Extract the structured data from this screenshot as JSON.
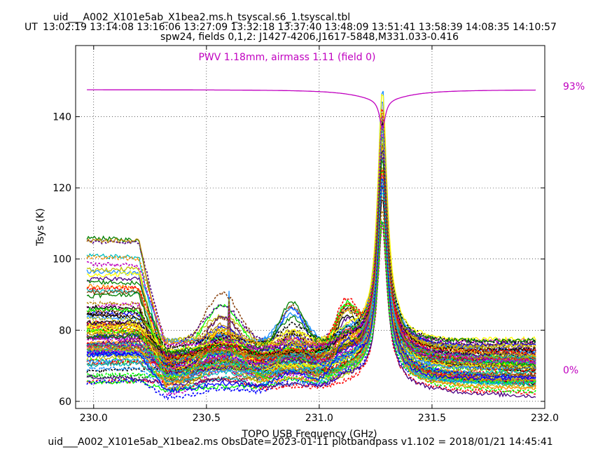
{
  "header": {
    "filename": "uid___A002_X101e5ab_X1bea2.ms.h_tsyscal.s6_1.tsyscal.tbl",
    "ut_label": "UT",
    "ut_times": [
      "13:02:19",
      "13:14:08",
      "13:16:06",
      "13:27:09",
      "13:32:18",
      "13:37:40",
      "13:48:09",
      "13:51:41",
      "13:58:39",
      "14:08:35",
      "14:10:57"
    ],
    "spw_line": "spw24,  fields 0,1,2: J1427-4206,J1617-5848,M331.033-0.416"
  },
  "footer": {
    "text": "uid___A002_X101e5ab_X1bea2.ms  ObsDate=2023-01-11   plotbandpass v1.102 = 2018/01/21 14:45:41"
  },
  "colors": {
    "atm": "#c000c0",
    "series": [
      "#0000ff",
      "#008000",
      "#ff0000",
      "#00bfbf",
      "#bf00bf",
      "#bfbf00",
      "#000000",
      "#00ff00",
      "#ff8c00",
      "#1e90ff",
      "#8b4513",
      "#b8860b",
      "#4b0082",
      "#ffff00"
    ]
  },
  "chart_data": {
    "type": "line",
    "title": "PWV 1.18mm, airmass 1.11 (field 0)",
    "xlabel": "TOPO USB Frequency (GHz)",
    "ylabel": "Tsys (K)",
    "xlim": [
      229.92,
      232.0
    ],
    "ylim": [
      58,
      160
    ],
    "xticks": [
      "230.0",
      "230.5",
      "231.0",
      "231.5",
      "232.0"
    ],
    "xtick_values": [
      230.0,
      230.5,
      231.0,
      231.5,
      232.0
    ],
    "yticks": [
      "60",
      "80",
      "100",
      "120",
      "140"
    ],
    "ytick_values": [
      60,
      80,
      100,
      120,
      140
    ],
    "grid": true,
    "atm_label_top": "93%",
    "atm_label_bottom": "0%",
    "x_range": [
      229.97,
      231.96
    ],
    "peak_freq": 231.28,
    "atm_transmission": {
      "name": "atmospheric transmission",
      "x": [
        229.97,
        230.3,
        230.7,
        231.0,
        231.2,
        231.26,
        231.28,
        231.3,
        231.36,
        231.6,
        231.96
      ],
      "y": [
        147.5,
        147.5,
        147.3,
        146.7,
        144.8,
        142.0,
        139.5,
        142.0,
        144.8,
        146.9,
        147.4
      ]
    },
    "representative_series": [
      {
        "name": "",
        "x": [
          229.97,
          230.1,
          230.2,
          230.3,
          230.45,
          230.55,
          230.6,
          230.7,
          230.8,
          230.9,
          231.0,
          231.1,
          231.2,
          231.26,
          231.28,
          231.3,
          231.36,
          231.5,
          231.7,
          231.85,
          231.96
        ],
        "y": [
          106,
          99,
          95,
          82,
          84,
          94,
          89,
          92,
          86,
          91,
          85,
          95,
          97,
          118,
          138,
          118,
          90,
          76,
          77,
          79,
          76
        ]
      }
    ]
  }
}
